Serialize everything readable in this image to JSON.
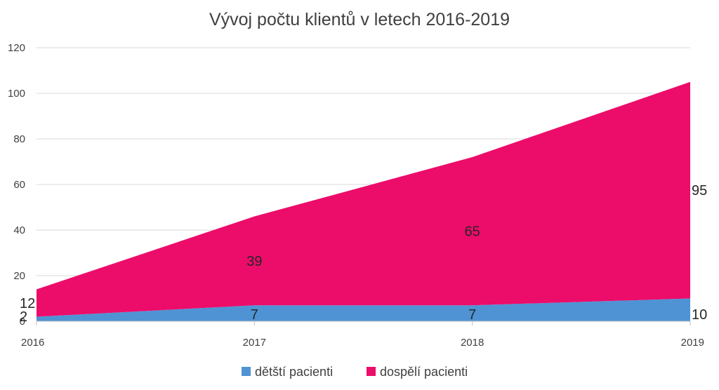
{
  "chart_data": {
    "type": "area",
    "stacked": true,
    "title": "Vývoj počtu klientů v letech 2016-2019",
    "categories": [
      "2016",
      "2017",
      "2018",
      "2019"
    ],
    "series": [
      {
        "name": "dětští pacienti",
        "values": [
          2,
          7,
          7,
          10
        ],
        "color": "#4f93d4"
      },
      {
        "name": "dospělí pacienti",
        "values": [
          12,
          39,
          65,
          95
        ],
        "color": "#ec0c6a"
      }
    ],
    "ylim": [
      0,
      120
    ],
    "yticks": [
      0,
      20,
      40,
      60,
      80,
      100,
      120
    ],
    "grid": true,
    "legend": "bottom"
  }
}
